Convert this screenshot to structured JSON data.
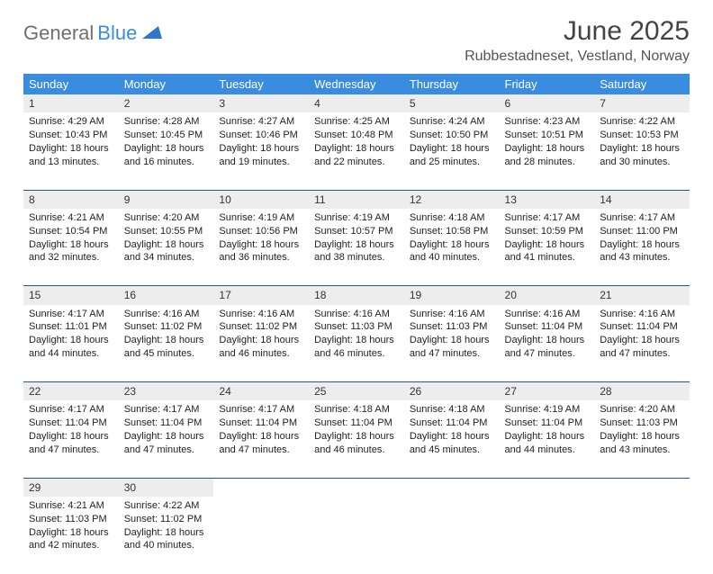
{
  "brand": {
    "part1": "General",
    "part2": "Blue"
  },
  "title": "June 2025",
  "location": "Rubbestadneset, Vestland, Norway",
  "colors": {
    "header_bg": "#3a8dde",
    "header_text": "#ffffff",
    "daynum_bg": "#ededed",
    "rule": "#245a8a",
    "logo_gray": "#6f6f6f",
    "logo_blue": "#3a8dde"
  },
  "day_headers": [
    "Sunday",
    "Monday",
    "Tuesday",
    "Wednesday",
    "Thursday",
    "Friday",
    "Saturday"
  ],
  "weeks": [
    [
      {
        "n": "1",
        "sunrise": "4:29 AM",
        "sunset": "10:43 PM",
        "dl": "18 hours and 13 minutes."
      },
      {
        "n": "2",
        "sunrise": "4:28 AM",
        "sunset": "10:45 PM",
        "dl": "18 hours and 16 minutes."
      },
      {
        "n": "3",
        "sunrise": "4:27 AM",
        "sunset": "10:46 PM",
        "dl": "18 hours and 19 minutes."
      },
      {
        "n": "4",
        "sunrise": "4:25 AM",
        "sunset": "10:48 PM",
        "dl": "18 hours and 22 minutes."
      },
      {
        "n": "5",
        "sunrise": "4:24 AM",
        "sunset": "10:50 PM",
        "dl": "18 hours and 25 minutes."
      },
      {
        "n": "6",
        "sunrise": "4:23 AM",
        "sunset": "10:51 PM",
        "dl": "18 hours and 28 minutes."
      },
      {
        "n": "7",
        "sunrise": "4:22 AM",
        "sunset": "10:53 PM",
        "dl": "18 hours and 30 minutes."
      }
    ],
    [
      {
        "n": "8",
        "sunrise": "4:21 AM",
        "sunset": "10:54 PM",
        "dl": "18 hours and 32 minutes."
      },
      {
        "n": "9",
        "sunrise": "4:20 AM",
        "sunset": "10:55 PM",
        "dl": "18 hours and 34 minutes."
      },
      {
        "n": "10",
        "sunrise": "4:19 AM",
        "sunset": "10:56 PM",
        "dl": "18 hours and 36 minutes."
      },
      {
        "n": "11",
        "sunrise": "4:19 AM",
        "sunset": "10:57 PM",
        "dl": "18 hours and 38 minutes."
      },
      {
        "n": "12",
        "sunrise": "4:18 AM",
        "sunset": "10:58 PM",
        "dl": "18 hours and 40 minutes."
      },
      {
        "n": "13",
        "sunrise": "4:17 AM",
        "sunset": "10:59 PM",
        "dl": "18 hours and 41 minutes."
      },
      {
        "n": "14",
        "sunrise": "4:17 AM",
        "sunset": "11:00 PM",
        "dl": "18 hours and 43 minutes."
      }
    ],
    [
      {
        "n": "15",
        "sunrise": "4:17 AM",
        "sunset": "11:01 PM",
        "dl": "18 hours and 44 minutes."
      },
      {
        "n": "16",
        "sunrise": "4:16 AM",
        "sunset": "11:02 PM",
        "dl": "18 hours and 45 minutes."
      },
      {
        "n": "17",
        "sunrise": "4:16 AM",
        "sunset": "11:02 PM",
        "dl": "18 hours and 46 minutes."
      },
      {
        "n": "18",
        "sunrise": "4:16 AM",
        "sunset": "11:03 PM",
        "dl": "18 hours and 46 minutes."
      },
      {
        "n": "19",
        "sunrise": "4:16 AM",
        "sunset": "11:03 PM",
        "dl": "18 hours and 47 minutes."
      },
      {
        "n": "20",
        "sunrise": "4:16 AM",
        "sunset": "11:04 PM",
        "dl": "18 hours and 47 minutes."
      },
      {
        "n": "21",
        "sunrise": "4:16 AM",
        "sunset": "11:04 PM",
        "dl": "18 hours and 47 minutes."
      }
    ],
    [
      {
        "n": "22",
        "sunrise": "4:17 AM",
        "sunset": "11:04 PM",
        "dl": "18 hours and 47 minutes."
      },
      {
        "n": "23",
        "sunrise": "4:17 AM",
        "sunset": "11:04 PM",
        "dl": "18 hours and 47 minutes."
      },
      {
        "n": "24",
        "sunrise": "4:17 AM",
        "sunset": "11:04 PM",
        "dl": "18 hours and 47 minutes."
      },
      {
        "n": "25",
        "sunrise": "4:18 AM",
        "sunset": "11:04 PM",
        "dl": "18 hours and 46 minutes."
      },
      {
        "n": "26",
        "sunrise": "4:18 AM",
        "sunset": "11:04 PM",
        "dl": "18 hours and 45 minutes."
      },
      {
        "n": "27",
        "sunrise": "4:19 AM",
        "sunset": "11:04 PM",
        "dl": "18 hours and 44 minutes."
      },
      {
        "n": "28",
        "sunrise": "4:20 AM",
        "sunset": "11:03 PM",
        "dl": "18 hours and 43 minutes."
      }
    ],
    [
      {
        "n": "29",
        "sunrise": "4:21 AM",
        "sunset": "11:03 PM",
        "dl": "18 hours and 42 minutes."
      },
      {
        "n": "30",
        "sunrise": "4:22 AM",
        "sunset": "11:02 PM",
        "dl": "18 hours and 40 minutes."
      },
      null,
      null,
      null,
      null,
      null
    ]
  ],
  "labels": {
    "sunrise": "Sunrise: ",
    "sunset": "Sunset: ",
    "daylight": "Daylight: "
  }
}
